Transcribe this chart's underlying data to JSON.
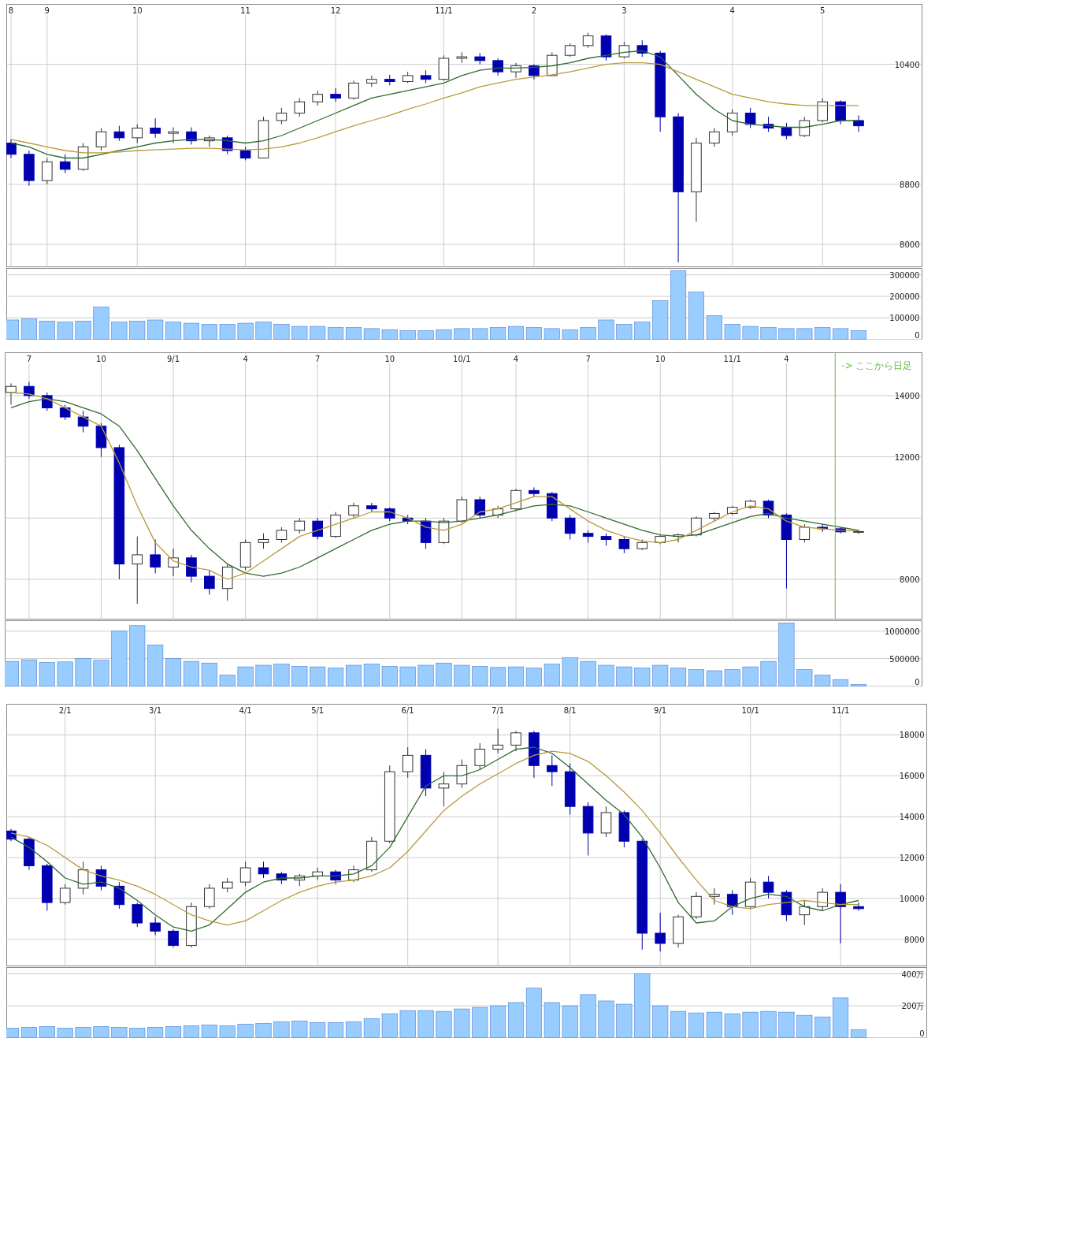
{
  "chart_data": [
    {
      "type": "candlestick",
      "grid": true,
      "ylim": [
        7700,
        11200
      ],
      "yticks": [
        8000,
        8800,
        10400
      ],
      "categories": [
        "8",
        null,
        "9",
        null,
        null,
        null,
        null,
        "10",
        null,
        null,
        null,
        null,
        null,
        "11",
        null,
        null,
        null,
        null,
        "12",
        null,
        null,
        null,
        null,
        null,
        "11/1",
        null,
        null,
        null,
        null,
        "2",
        null,
        null,
        null,
        null,
        "3",
        null,
        null,
        null,
        null,
        null,
        "4",
        null,
        null,
        null,
        null,
        "5",
        null,
        null
      ],
      "ohlc": [
        [
          9350,
          9400,
          9150,
          9200
        ],
        [
          9200,
          9250,
          8780,
          8850
        ],
        [
          8850,
          9150,
          8800,
          9100
        ],
        [
          9100,
          9200,
          8950,
          9000
        ],
        [
          9000,
          9350,
          8980,
          9300
        ],
        [
          9300,
          9550,
          9250,
          9500
        ],
        [
          9500,
          9580,
          9380,
          9420
        ],
        [
          9420,
          9600,
          9350,
          9550
        ],
        [
          9550,
          9680,
          9420,
          9480
        ],
        [
          9480,
          9560,
          9350,
          9500
        ],
        [
          9500,
          9560,
          9330,
          9380
        ],
        [
          9380,
          9450,
          9300,
          9420
        ],
        [
          9420,
          9450,
          9200,
          9250
        ],
        [
          9250,
          9300,
          9120,
          9150
        ],
        [
          9150,
          9700,
          9150,
          9650
        ],
        [
          9650,
          9820,
          9600,
          9750
        ],
        [
          9750,
          9950,
          9700,
          9900
        ],
        [
          9900,
          10050,
          9850,
          10000
        ],
        [
          10000,
          10080,
          9900,
          9950
        ],
        [
          9950,
          10180,
          9930,
          10150
        ],
        [
          10150,
          10250,
          10100,
          10200
        ],
        [
          10200,
          10260,
          10120,
          10170
        ],
        [
          10170,
          10300,
          10150,
          10250
        ],
        [
          10250,
          10320,
          10150,
          10200
        ],
        [
          10200,
          10520,
          10180,
          10480
        ],
        [
          10480,
          10560,
          10420,
          10500
        ],
        [
          10500,
          10550,
          10400,
          10450
        ],
        [
          10450,
          10480,
          10250,
          10300
        ],
        [
          10300,
          10420,
          10220,
          10380
        ],
        [
          10380,
          10400,
          10200,
          10250
        ],
        [
          10250,
          10560,
          10240,
          10520
        ],
        [
          10520,
          10680,
          10500,
          10650
        ],
        [
          10650,
          10820,
          10620,
          10780
        ],
        [
          10780,
          10800,
          10450,
          10500
        ],
        [
          10500,
          10700,
          10480,
          10650
        ],
        [
          10650,
          10720,
          10500,
          10550
        ],
        [
          10550,
          10580,
          9500,
          9700
        ],
        [
          9700,
          9750,
          7760,
          8700
        ],
        [
          8700,
          9420,
          8300,
          9350
        ],
        [
          9350,
          9550,
          9300,
          9500
        ],
        [
          9500,
          9800,
          9450,
          9750
        ],
        [
          9750,
          9820,
          9550,
          9600
        ],
        [
          9600,
          9700,
          9500,
          9550
        ],
        [
          9550,
          9620,
          9400,
          9450
        ],
        [
          9450,
          9700,
          9430,
          9650
        ],
        [
          9650,
          9950,
          9630,
          9900
        ],
        [
          9900,
          9920,
          9600,
          9650
        ],
        [
          9650,
          9720,
          9500,
          9580
        ]
      ],
      "series": [
        {
          "type": "line",
          "color": "#2e6b2e",
          "values": [
            9350,
            9300,
            9200,
            9150,
            9150,
            9200,
            9250,
            9300,
            9350,
            9380,
            9400,
            9400,
            9380,
            9350,
            9380,
            9450,
            9550,
            9650,
            9750,
            9850,
            9950,
            10000,
            10050,
            10100,
            10150,
            10250,
            10320,
            10350,
            10350,
            10360,
            10380,
            10420,
            10480,
            10520,
            10560,
            10580,
            10500,
            10250,
            10000,
            9800,
            9650,
            9600,
            9580,
            9560,
            9560,
            9600,
            9650,
            9650
          ]
        },
        {
          "type": "line",
          "color": "#b89a3a",
          "values": [
            9400,
            9350,
            9300,
            9250,
            9220,
            9220,
            9230,
            9250,
            9260,
            9270,
            9280,
            9280,
            9270,
            9260,
            9270,
            9300,
            9350,
            9420,
            9500,
            9580,
            9650,
            9720,
            9800,
            9870,
            9950,
            10020,
            10100,
            10150,
            10200,
            10230,
            10260,
            10300,
            10350,
            10400,
            10420,
            10420,
            10400,
            10300,
            10200,
            10100,
            10000,
            9950,
            9900,
            9870,
            9850,
            9850,
            9850,
            9850
          ]
        }
      ]
    },
    {
      "type": "bar",
      "grid": "y",
      "tick_labels": "y",
      "color": "#99ccff",
      "ylim": [
        0,
        330000
      ],
      "yticks": [
        0,
        100000,
        200000,
        300000
      ],
      "categories": [
        null,
        null,
        null,
        null,
        null,
        null,
        null,
        null,
        null,
        null,
        null,
        null,
        null,
        null,
        null,
        null,
        null,
        null,
        null,
        null,
        null,
        null,
        null,
        null,
        null,
        null,
        null,
        null,
        null,
        null,
        null,
        null,
        null,
        null,
        null,
        null,
        null,
        null,
        null,
        null,
        null,
        null,
        null,
        null,
        null,
        null,
        null,
        null
      ],
      "values": [
        90000,
        95000,
        85000,
        80000,
        85000,
        150000,
        80000,
        85000,
        90000,
        80000,
        75000,
        70000,
        70000,
        75000,
        80000,
        70000,
        60000,
        60000,
        55000,
        55000,
        50000,
        45000,
        40000,
        40000,
        45000,
        50000,
        50000,
        55000,
        60000,
        55000,
        50000,
        45000,
        55000,
        90000,
        70000,
        80000,
        180000,
        320000,
        220000,
        110000,
        70000,
        60000,
        55000,
        50000,
        50000,
        55000,
        50000,
        40000
      ]
    },
    {
      "type": "candlestick",
      "grid": true,
      "ylim": [
        6700,
        15400
      ],
      "yticks": [
        8000,
        {
          "value": 10000,
          "label": null
        },
        12000,
        14000
      ],
      "categories": [
        null,
        "7",
        null,
        null,
        null,
        "10",
        null,
        null,
        null,
        "9/1",
        null,
        null,
        null,
        "4",
        null,
        null,
        null,
        "7",
        null,
        null,
        null,
        "10",
        null,
        null,
        null,
        "10/1",
        null,
        null,
        "4",
        null,
        null,
        null,
        "7",
        null,
        null,
        null,
        "10",
        null,
        null,
        null,
        "11/1",
        null,
        null,
        "4",
        null,
        null,
        null,
        null
      ],
      "ohlc": [
        [
          14100,
          14400,
          13700,
          14300
        ],
        [
          14300,
          14450,
          13900,
          14000
        ],
        [
          14000,
          14100,
          13500,
          13600
        ],
        [
          13600,
          13700,
          13200,
          13300
        ],
        [
          13300,
          13500,
          12800,
          13000
        ],
        [
          13000,
          13100,
          12000,
          12300
        ],
        [
          12300,
          12400,
          8000,
          8500
        ],
        [
          8500,
          9400,
          7200,
          8800
        ],
        [
          8800,
          9300,
          8200,
          8400
        ],
        [
          8400,
          9000,
          8100,
          8700
        ],
        [
          8700,
          8800,
          7900,
          8100
        ],
        [
          8100,
          8300,
          7500,
          7700
        ],
        [
          7700,
          8500,
          7300,
          8400
        ],
        [
          8400,
          9300,
          8300,
          9200
        ],
        [
          9200,
          9500,
          9000,
          9300
        ],
        [
          9300,
          9700,
          9200,
          9600
        ],
        [
          9600,
          10000,
          9500,
          9900
        ],
        [
          9900,
          10000,
          9300,
          9400
        ],
        [
          9400,
          10200,
          9350,
          10100
        ],
        [
          10100,
          10500,
          10000,
          10400
        ],
        [
          10400,
          10500,
          10200,
          10300
        ],
        [
          10300,
          10350,
          9900,
          10000
        ],
        [
          10000,
          10100,
          9800,
          9900
        ],
        [
          9900,
          10000,
          9000,
          9200
        ],
        [
          9200,
          10000,
          9150,
          9900
        ],
        [
          9900,
          10700,
          9850,
          10600
        ],
        [
          10600,
          10700,
          10000,
          10100
        ],
        [
          10100,
          10400,
          10000,
          10300
        ],
        [
          10300,
          10950,
          10250,
          10900
        ],
        [
          10900,
          11000,
          10700,
          10800
        ],
        [
          10800,
          10850,
          9900,
          10000
        ],
        [
          10000,
          10100,
          9300,
          9500
        ],
        [
          9500,
          9600,
          9200,
          9400
        ],
        [
          9400,
          9500,
          9100,
          9300
        ],
        [
          9300,
          9400,
          8850,
          9000
        ],
        [
          9000,
          9300,
          8950,
          9200
        ],
        [
          9200,
          9450,
          9150,
          9400
        ],
        [
          9400,
          9500,
          9200,
          9450
        ],
        [
          9450,
          10050,
          9400,
          10000
        ],
        [
          10000,
          10200,
          9900,
          10150
        ],
        [
          10150,
          10400,
          10100,
          10350
        ],
        [
          10350,
          10600,
          10300,
          10550
        ],
        [
          10550,
          10600,
          10000,
          10100
        ],
        [
          10100,
          10150,
          7700,
          9300
        ],
        [
          9300,
          9800,
          9200,
          9700
        ],
        [
          9700,
          9800,
          9550,
          9650
        ],
        [
          9650,
          9700,
          9500,
          9550
        ],
        [
          9550,
          9620,
          9480,
          9560
        ]
      ],
      "series": [
        {
          "type": "line",
          "color": "#2e6b2e",
          "values": [
            13600,
            13800,
            13900,
            13800,
            13600,
            13400,
            13000,
            12200,
            11300,
            10400,
            9600,
            9000,
            8500,
            8200,
            8100,
            8200,
            8400,
            8700,
            9000,
            9300,
            9600,
            9800,
            9900,
            9900,
            9850,
            9900,
            10000,
            10100,
            10250,
            10400,
            10450,
            10400,
            10200,
            10000,
            9800,
            9600,
            9450,
            9400,
            9450,
            9650,
            9850,
            10050,
            10150,
            10000,
            9900,
            9800,
            9700,
            9600
          ]
        },
        {
          "type": "line",
          "color": "#b89a3a",
          "values": [
            14100,
            14050,
            13900,
            13600,
            13300,
            13000,
            11800,
            10400,
            9200,
            8600,
            8400,
            8300,
            8000,
            8200,
            8600,
            9000,
            9400,
            9600,
            9800,
            10000,
            10200,
            10200,
            10000,
            9700,
            9600,
            9800,
            10200,
            10300,
            10500,
            10700,
            10700,
            10300,
            9900,
            9600,
            9400,
            9250,
            9200,
            9300,
            9600,
            9900,
            10200,
            10400,
            10300,
            9900,
            9700,
            9650,
            9600,
            9580
          ]
        }
      ],
      "annotations": [
        "-> ここから日足"
      ]
    },
    {
      "type": "bar",
      "grid": "y",
      "tick_labels": "y",
      "color": "#99ccff",
      "ylim": [
        0,
        1190000
      ],
      "yticks": [
        0,
        500000,
        1000000
      ],
      "categories": [
        null,
        null,
        null,
        null,
        null,
        null,
        null,
        null,
        null,
        null,
        null,
        null,
        null,
        null,
        null,
        null,
        null,
        null,
        null,
        null,
        null,
        null,
        null,
        null,
        null,
        null,
        null,
        null,
        null,
        null,
        null,
        null,
        null,
        null,
        null,
        null,
        null,
        null,
        null,
        null,
        null,
        null,
        null,
        null,
        null,
        null,
        null,
        null
      ],
      "values": [
        450000,
        480000,
        430000,
        440000,
        500000,
        470000,
        1000000,
        1100000,
        750000,
        500000,
        450000,
        420000,
        200000,
        350000,
        380000,
        400000,
        360000,
        350000,
        330000,
        380000,
        400000,
        360000,
        350000,
        380000,
        420000,
        380000,
        360000,
        340000,
        350000,
        330000,
        400000,
        520000,
        450000,
        380000,
        350000,
        330000,
        380000,
        330000,
        300000,
        280000,
        300000,
        350000,
        450000,
        1150000,
        300000,
        200000,
        120000,
        30000
      ]
    },
    {
      "type": "candlestick",
      "grid": true,
      "ylim": [
        6700,
        19500
      ],
      "yticks": [
        8000,
        10000,
        12000,
        14000,
        16000,
        18000
      ],
      "categories": [
        null,
        null,
        null,
        "2/1",
        null,
        null,
        null,
        null,
        "3/1",
        null,
        null,
        null,
        null,
        "4/1",
        null,
        null,
        null,
        "5/1",
        null,
        null,
        null,
        null,
        "6/1",
        null,
        null,
        null,
        null,
        "7/1",
        null,
        null,
        null,
        "8/1",
        null,
        null,
        null,
        null,
        "9/1",
        null,
        null,
        null,
        null,
        "10/1",
        null,
        null,
        null,
        null,
        "11/1",
        null
      ],
      "ohlc": [
        [
          13300,
          13400,
          12800,
          12900
        ],
        [
          12900,
          13000,
          11400,
          11600
        ],
        [
          11600,
          11700,
          9400,
          9800
        ],
        [
          9800,
          10700,
          9700,
          10500
        ],
        [
          10500,
          11800,
          10200,
          11400
        ],
        [
          11400,
          11600,
          10400,
          10600
        ],
        [
          10600,
          10800,
          9500,
          9700
        ],
        [
          9700,
          9800,
          8600,
          8800
        ],
        [
          8800,
          9100,
          8200,
          8400
        ],
        [
          8400,
          8500,
          7600,
          7700
        ],
        [
          7700,
          9800,
          7600,
          9600
        ],
        [
          9600,
          10700,
          9500,
          10500
        ],
        [
          10500,
          11000,
          10300,
          10800
        ],
        [
          10800,
          11800,
          10600,
          11500
        ],
        [
          11500,
          11800,
          11000,
          11200
        ],
        [
          11200,
          11300,
          10700,
          10900
        ],
        [
          10900,
          11200,
          10600,
          11100
        ],
        [
          11100,
          11500,
          10900,
          11300
        ],
        [
          11300,
          11400,
          10700,
          10900
        ],
        [
          10900,
          11600,
          10800,
          11400
        ],
        [
          11400,
          13000,
          11300,
          12800
        ],
        [
          12800,
          16500,
          12700,
          16200
        ],
        [
          16200,
          17400,
          15900,
          17000
        ],
        [
          17000,
          17300,
          15000,
          15400
        ],
        [
          15400,
          16200,
          14500,
          15600
        ],
        [
          15600,
          16800,
          15400,
          16500
        ],
        [
          16500,
          17600,
          16300,
          17300
        ],
        [
          17300,
          18300,
          17100,
          17500
        ],
        [
          17500,
          18200,
          17200,
          18100
        ],
        [
          18100,
          18200,
          15900,
          16500
        ],
        [
          16500,
          17000,
          15500,
          16200
        ],
        [
          16200,
          16600,
          14100,
          14500
        ],
        [
          14500,
          14700,
          12100,
          13200
        ],
        [
          13200,
          14500,
          13000,
          14200
        ],
        [
          14200,
          14300,
          12500,
          12800
        ],
        [
          12800,
          12900,
          7500,
          8300
        ],
        [
          8300,
          9300,
          7400,
          7800
        ],
        [
          7800,
          9200,
          7600,
          9100
        ],
        [
          9100,
          10300,
          9000,
          10100
        ],
        [
          10100,
          10500,
          9700,
          10200
        ],
        [
          10200,
          10400,
          9200,
          9600
        ],
        [
          9600,
          11000,
          9500,
          10800
        ],
        [
          10800,
          11100,
          10000,
          10300
        ],
        [
          10300,
          10400,
          8900,
          9200
        ],
        [
          9200,
          9900,
          8700,
          9600
        ],
        [
          9600,
          10500,
          9400,
          10300
        ],
        [
          10300,
          10700,
          7800,
          9600
        ],
        [
          9600,
          9800,
          9400,
          9500
        ]
      ],
      "series": [
        {
          "type": "line",
          "color": "#2e6b2e",
          "values": [
            13000,
            12500,
            11800,
            11000,
            10700,
            10800,
            10500,
            9900,
            9200,
            8600,
            8400,
            8700,
            9500,
            10300,
            10800,
            11000,
            11000,
            11100,
            11100,
            11200,
            11600,
            12500,
            14000,
            15500,
            16000,
            16000,
            16300,
            16800,
            17300,
            17400,
            17100,
            16400,
            15600,
            14800,
            14100,
            13000,
            11500,
            9800,
            8800,
            8900,
            9600,
            10000,
            10200,
            10100,
            9600,
            9400,
            9700,
            9900
          ]
        },
        {
          "type": "line",
          "color": "#b89a3a",
          "values": [
            13200,
            13000,
            12600,
            12000,
            11400,
            11100,
            10900,
            10600,
            10200,
            9700,
            9200,
            8900,
            8700,
            8900,
            9400,
            9900,
            10300,
            10600,
            10800,
            10900,
            11100,
            11500,
            12300,
            13300,
            14300,
            15000,
            15600,
            16100,
            16600,
            17000,
            17200,
            17100,
            16700,
            16000,
            15200,
            14300,
            13200,
            12000,
            10900,
            9900,
            9600,
            9500,
            9700,
            9800,
            9900,
            9800,
            9700,
            9700
          ]
        }
      ]
    },
    {
      "type": "bar",
      "grid": "y",
      "tick_labels": "y",
      "color": "#99ccff",
      "ylim": [
        0,
        440
      ],
      "yticks": [
        0,
        {
          "value": 200,
          "label": "200万"
        },
        {
          "value": 400,
          "label": "400万"
        }
      ],
      "categories": [
        null,
        null,
        null,
        null,
        null,
        null,
        null,
        null,
        null,
        null,
        null,
        null,
        null,
        null,
        null,
        null,
        null,
        null,
        null,
        null,
        null,
        null,
        null,
        null,
        null,
        null,
        null,
        null,
        null,
        null,
        null,
        null,
        null,
        null,
        null,
        null,
        null,
        null,
        null,
        null,
        null,
        null,
        null,
        null,
        null,
        null,
        null,
        null
      ],
      "values": [
        60,
        65,
        70,
        60,
        65,
        70,
        65,
        60,
        65,
        70,
        75,
        80,
        75,
        85,
        90,
        100,
        105,
        95,
        95,
        100,
        120,
        150,
        170,
        170,
        165,
        180,
        190,
        200,
        220,
        310,
        220,
        200,
        270,
        230,
        210,
        400,
        200,
        165,
        155,
        160,
        150,
        160,
        165,
        160,
        140,
        130,
        250,
        50
      ]
    }
  ]
}
